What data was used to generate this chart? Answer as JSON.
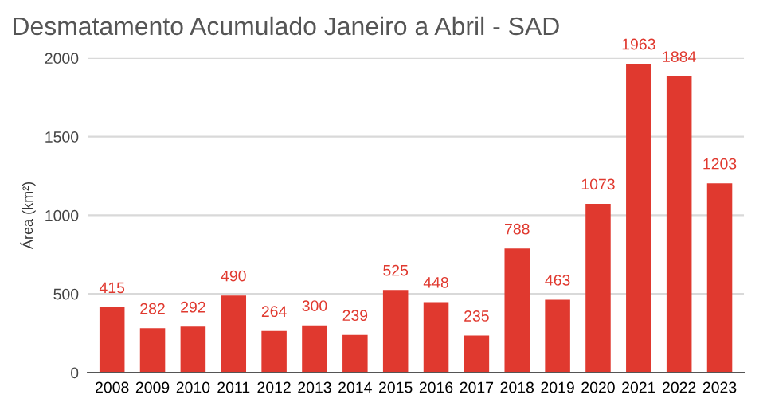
{
  "chart_data": {
    "type": "bar",
    "title": "Desmatamento Acumulado Janeiro a Abril - SAD",
    "ylabel": "Área (km²)",
    "categories": [
      "2008",
      "2009",
      "2010",
      "2011",
      "2012",
      "2013",
      "2014",
      "2015",
      "2016",
      "2017",
      "2018",
      "2019",
      "2020",
      "2021",
      "2022",
      "2023"
    ],
    "values": [
      415,
      282,
      292,
      490,
      264,
      300,
      239,
      525,
      448,
      235,
      788,
      463,
      1073,
      1963,
      1884,
      1203
    ],
    "color": "#e0392f",
    "ylim": [
      0,
      2000
    ],
    "yticks": [
      0,
      500,
      1000,
      1500,
      2000
    ],
    "grid": "y",
    "data_labels": true
  }
}
